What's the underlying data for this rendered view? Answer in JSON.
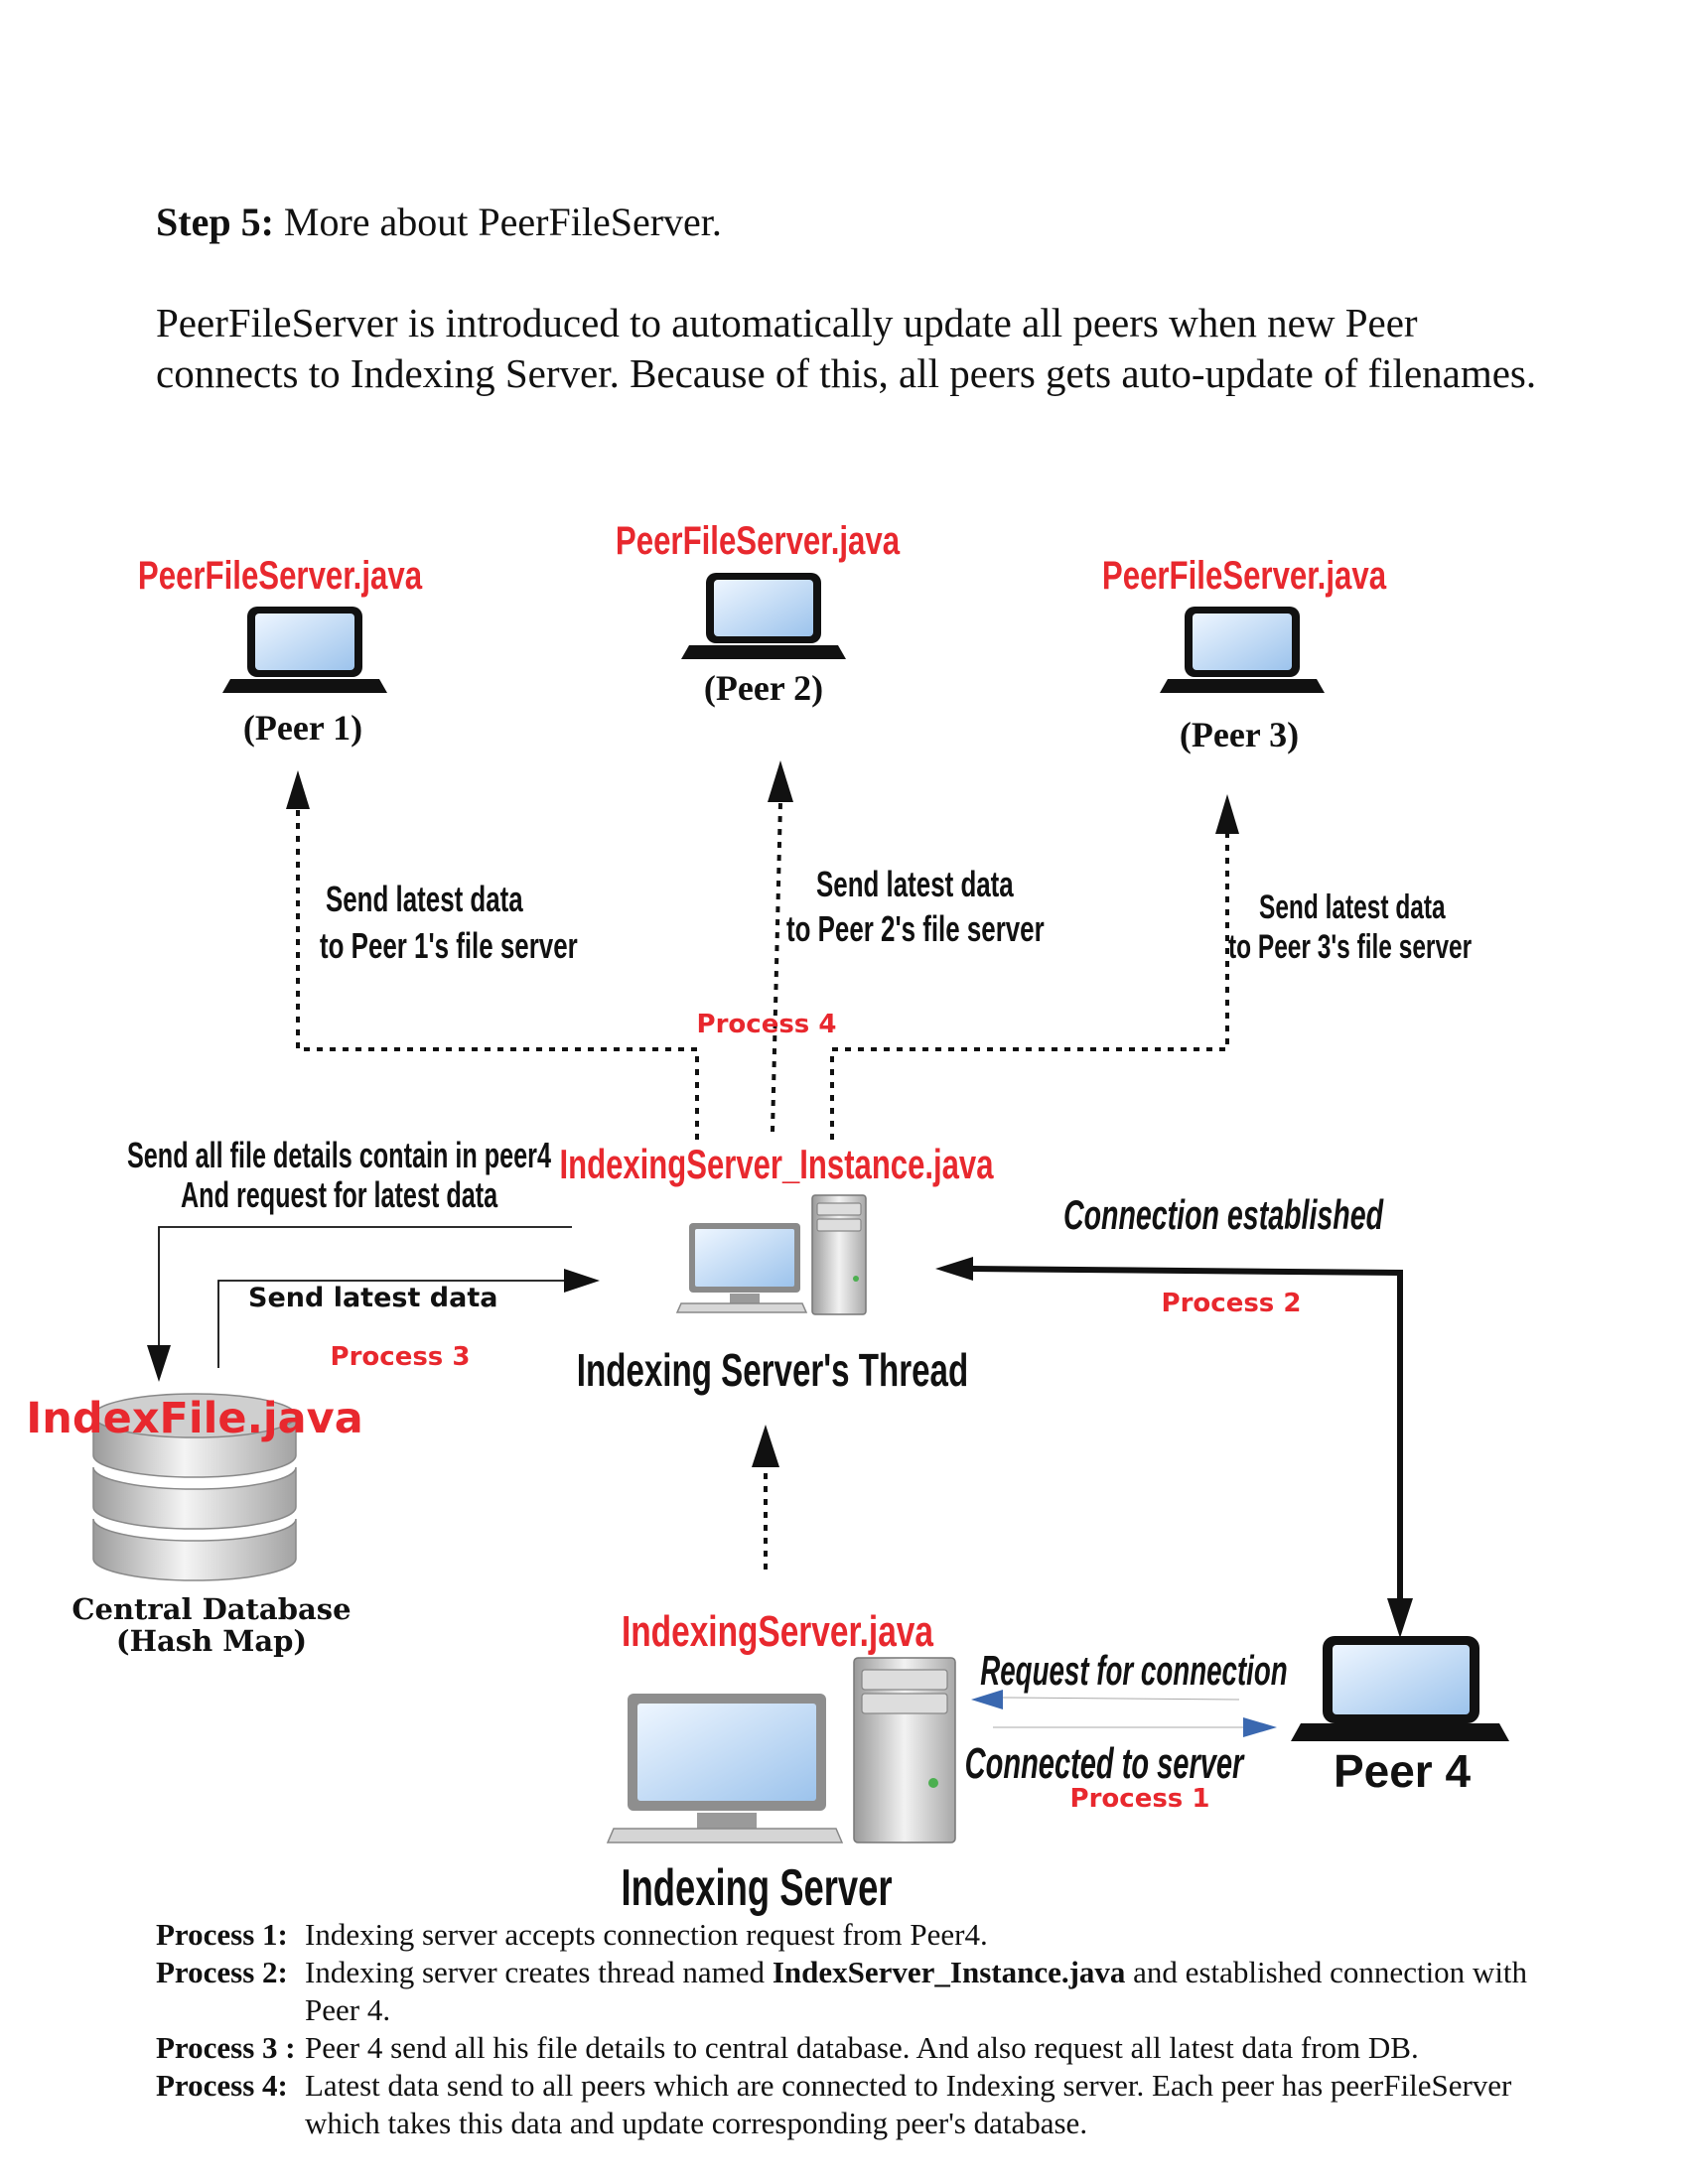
{
  "heading": {
    "step_label": "Step 5:",
    "step_text": "More about PeerFileServer."
  },
  "intro": "PeerFileServer is introduced to automatically update all peers when new Peer connects to Indexing Server. Because of this, all peers gets auto-update of filenames.",
  "diagram": {
    "peers": [
      {
        "file": "PeerFileServer.java",
        "label": "(Peer 1)"
      },
      {
        "file": "PeerFileServer.java",
        "label": "(Peer 2)"
      },
      {
        "file": "PeerFileServer.java",
        "label": "(Peer 3)"
      }
    ],
    "send_latest": [
      {
        "line1": "Send latest data",
        "line2": "to Peer 1's file server"
      },
      {
        "line1": "Send latest data",
        "line2": "to Peer 2's file server"
      },
      {
        "line1": "Send latest data",
        "line2": "to Peer 3's file server"
      }
    ],
    "process4_label": "Process 4",
    "send_details": {
      "line1": "Send all file details contain in peer4",
      "line2": "And request for latest data"
    },
    "send_latest_data": "Send latest data",
    "process3_label": "Process 3",
    "thread_file": "IndexingServer_Instance.java",
    "thread_label": "Indexing Server's Thread",
    "connection_established": "Connection established",
    "process2_label": "Process 2",
    "db_file": "IndexFile.java",
    "db_label": {
      "line1": "Central Database",
      "line2": "(Hash Map)"
    },
    "server_file": "IndexingServer.java",
    "server_label": "Indexing Server",
    "request_connection": "Request for connection",
    "connected_to_server": "Connected to server",
    "process1_label": "Process 1",
    "peer4_label": "Peer 4",
    "colors": {
      "red": "#e8282e",
      "black": "#111111",
      "blue": "#3a68b0"
    }
  },
  "processes": [
    {
      "label": "Process 1",
      "sep": ": ",
      "text": "Indexing server accepts connection request from Peer4."
    },
    {
      "label": "Process 2",
      "sep": ": ",
      "text_before": "Indexing server creates thread named ",
      "bold": "IndexServer_Instance.java",
      "text_after": " and established connection with Peer 4."
    },
    {
      "label": "Process 3",
      "sep": " : ",
      "text": "Peer 4 send all his file details to central database. And also request all latest data from DB."
    },
    {
      "label": "Process 4",
      "sep": ": ",
      "text": "Latest data send to all peers which are connected to Indexing server. Each peer has peerFileServer which takes this data and update corresponding peer's database."
    }
  ]
}
